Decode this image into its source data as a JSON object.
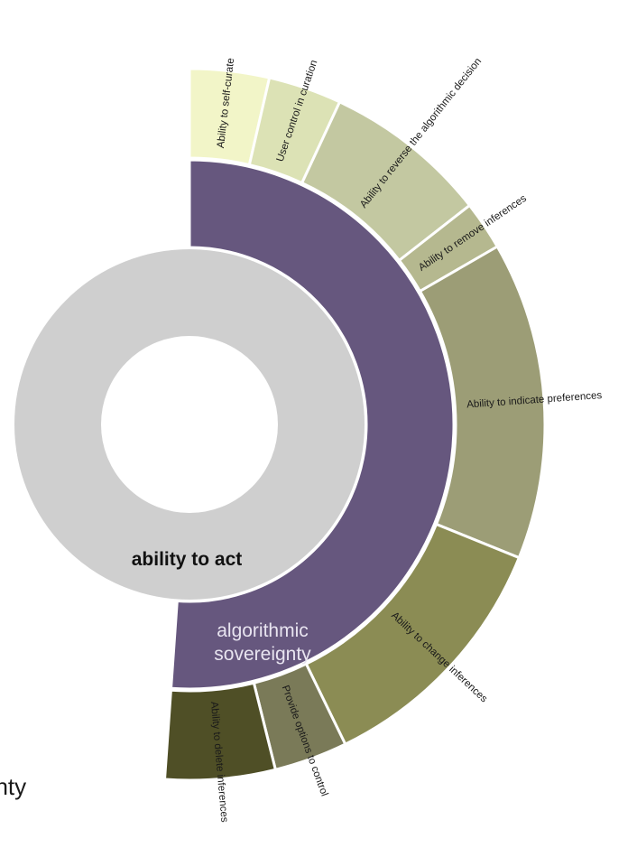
{
  "chart_data": {
    "type": "sunburst",
    "inner_ring": {
      "label": "ability to act",
      "color": "#cfcfcf"
    },
    "middle_ring": {
      "label_lines": [
        "algorithmic",
        "sovereignty"
      ],
      "color": "#66577e"
    },
    "outer_ring": [
      {
        "label": "Ability to self-curate",
        "color": "#f2f5c8",
        "start_deg": 0,
        "end_deg": 13
      },
      {
        "label": "User control in curation",
        "color": "#dce2b5",
        "start_deg": 13,
        "end_deg": 25
      },
      {
        "label": "Ability to reverse  the algorithmic decision",
        "color": "#c3c8a1",
        "start_deg": 25,
        "end_deg": 52
      },
      {
        "label": "Ability to remove inferences",
        "color": "#b5b88f",
        "start_deg": 52,
        "end_deg": 60
      },
      {
        "label": "Ability to indicate preferences",
        "color": "#9c9d76",
        "start_deg": 60,
        "end_deg": 112
      },
      {
        "label": "Ability to change inferences",
        "color": "#8b8c54",
        "start_deg": 112,
        "end_deg": 154
      },
      {
        "label": "Provide options to control",
        "color": "#7a7a58",
        "start_deg": 154,
        "end_deg": 166
      },
      {
        "label": "Ability to delete inferences",
        "color": "#4f4f26",
        "start_deg": 166,
        "end_deg": 184
      }
    ]
  },
  "cutoff_text": "gnty"
}
